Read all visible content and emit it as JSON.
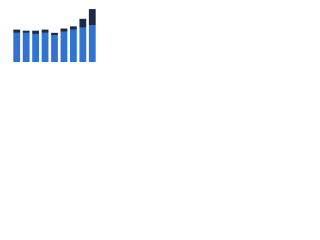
{
  "chart_data": {
    "type": "stacked-bar",
    "categories": [
      null,
      null,
      null,
      null,
      null,
      null,
      null,
      null,
      null
    ],
    "series": [
      {
        "color": "#2f74d0",
        "values": [
          27,
          27,
          26,
          27,
          25,
          28,
          30,
          32,
          34
        ]
      },
      {
        "color": "#1b2a47",
        "values": [
          3,
          2,
          3,
          3,
          2,
          3,
          3,
          8,
          15
        ]
      }
    ],
    "ylim": [
      0,
      50
    ]
  }
}
